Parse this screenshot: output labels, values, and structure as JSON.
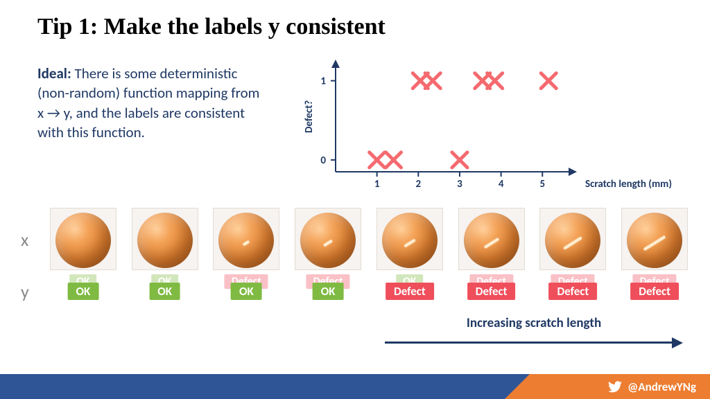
{
  "title": "Tip 1: Make the labels y consistent",
  "ideal": {
    "lead": "Ideal:",
    "text": " There is some deterministic (non-random) function mapping from x → y, and the labels are consistent with this function."
  },
  "chart": {
    "type": "scatter",
    "xlabel": "Scratch length (mm)",
    "ylabel": "Defect?",
    "xlim": [
      0,
      5.8
    ],
    "ylim": [
      -0.15,
      1.25
    ],
    "xticks": [
      1,
      2,
      3,
      4,
      5
    ],
    "yticks": [
      0,
      1
    ],
    "marker": "x",
    "marker_color": "#f46a6f",
    "marker_stroke": 5,
    "marker_size": 22,
    "axis_color": "#1f3864",
    "label_color": "#1f3864",
    "label_fontsize": 15,
    "tick_fontsize": 15,
    "points": [
      {
        "x": 1.0,
        "y": 0
      },
      {
        "x": 1.4,
        "y": 0
      },
      {
        "x": 3.0,
        "y": 0
      },
      {
        "x": 2.05,
        "y": 1
      },
      {
        "x": 2.35,
        "y": 1
      },
      {
        "x": 3.55,
        "y": 1
      },
      {
        "x": 3.85,
        "y": 1
      },
      {
        "x": 5.15,
        "y": 1
      }
    ]
  },
  "row_labels": {
    "x": "x",
    "y": "y"
  },
  "samples": [
    {
      "scratch_len": 0,
      "faded": {
        "text": "OK",
        "cls": "ok"
      },
      "main": {
        "text": "OK",
        "cls": "ok"
      }
    },
    {
      "scratch_len": 0,
      "faded": {
        "text": "OK",
        "cls": "ok"
      },
      "main": {
        "text": "OK",
        "cls": "ok"
      }
    },
    {
      "scratch_len": 10,
      "faded": {
        "text": "Defect",
        "cls": "defect"
      },
      "main": {
        "text": "OK",
        "cls": "ok"
      }
    },
    {
      "scratch_len": 14,
      "faded": {
        "text": "Defect",
        "cls": "defect"
      },
      "main": {
        "text": "OK",
        "cls": "ok"
      }
    },
    {
      "scratch_len": 18,
      "faded": {
        "text": "OK",
        "cls": "ok"
      },
      "main": {
        "text": "Defect",
        "cls": "defect"
      }
    },
    {
      "scratch_len": 24,
      "faded": {
        "text": "Defect",
        "cls": "defect"
      },
      "main": {
        "text": "Defect",
        "cls": "defect"
      }
    },
    {
      "scratch_len": 30,
      "faded": {
        "text": "Defect",
        "cls": "defect"
      },
      "main": {
        "text": "Defect",
        "cls": "defect"
      }
    },
    {
      "scratch_len": 36,
      "faded": {
        "text": "Defect",
        "cls": "defect"
      },
      "main": {
        "text": "Defect",
        "cls": "defect"
      }
    }
  ],
  "arrow_caption": "Increasing scratch length",
  "footer": {
    "handle": "@AndrewYNg"
  },
  "colors": {
    "ok": "#7fba42",
    "defect": "#ef4e5b",
    "accent_blue": "#2f5597",
    "accent_orange": "#ed7d31",
    "dark_text": "#1f3864"
  }
}
